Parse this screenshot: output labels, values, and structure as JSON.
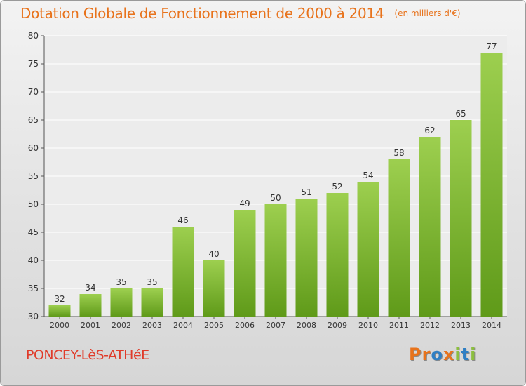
{
  "title": "Dotation Globale de Fonctionnement de 2000 à 2014",
  "subtitle": "(en milliers d'€)",
  "commune": "PONCEY-LèS-ATHéE",
  "logo": {
    "letters": [
      "P",
      "r",
      "o",
      "x",
      "i",
      "t",
      "i"
    ]
  },
  "colors": {
    "title": "#e8731c",
    "commune": "#e03b2a",
    "bar_top": "#9dcf4f",
    "bar_bottom": "#5f9a19"
  },
  "chart_data": {
    "type": "bar",
    "categories": [
      "2000",
      "2001",
      "2002",
      "2003",
      "2004",
      "2005",
      "2006",
      "2007",
      "2008",
      "2009",
      "2010",
      "2011",
      "2012",
      "2013",
      "2014"
    ],
    "values": [
      32,
      34,
      35,
      35,
      46,
      40,
      49,
      50,
      51,
      52,
      54,
      58,
      62,
      65,
      77
    ],
    "ylim": [
      30,
      80
    ],
    "yticks": [
      30,
      35,
      40,
      45,
      50,
      55,
      60,
      65,
      70,
      75,
      80
    ],
    "grid": true,
    "legend": "none"
  }
}
